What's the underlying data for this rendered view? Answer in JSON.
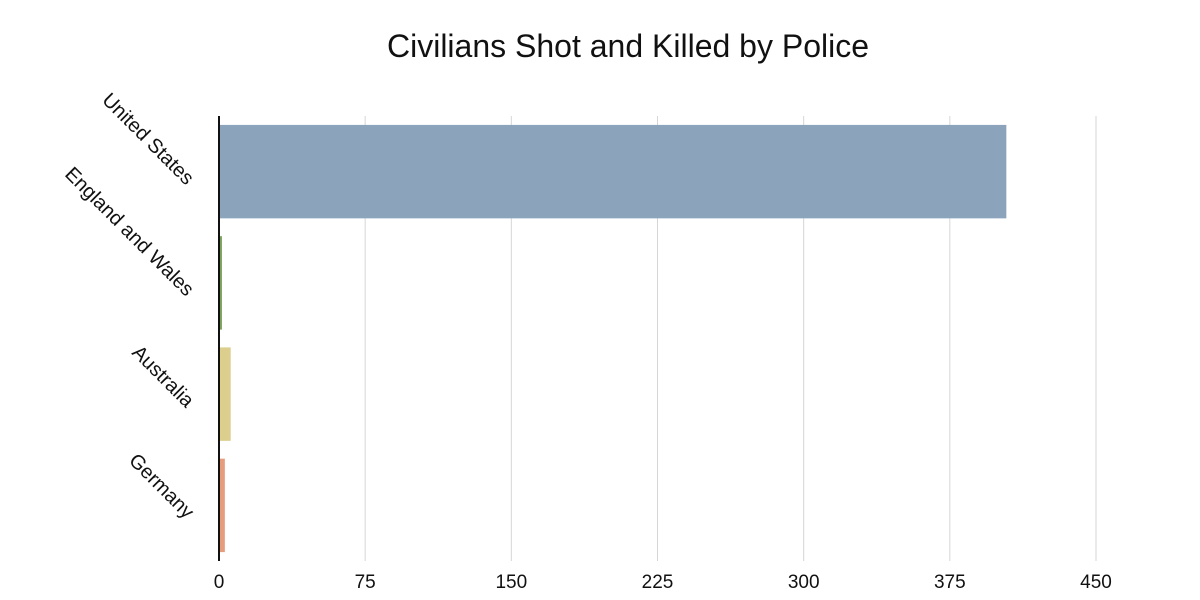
{
  "chart_data": {
    "type": "bar",
    "orientation": "horizontal",
    "title": "Civilians Shot and Killed by Police",
    "xlabel": "",
    "ylabel": "",
    "categories": [
      "United States",
      "England and Wales",
      "Australia",
      "Germany"
    ],
    "values": [
      404,
      1.5,
      6,
      3
    ],
    "colors": [
      "#8ca3bc",
      "#7ba05b",
      "#dccf8e",
      "#e59d7d"
    ],
    "xlim": [
      0,
      450
    ],
    "xticks": [
      0,
      75,
      150,
      225,
      300,
      375,
      450
    ],
    "grid": "vertical"
  }
}
